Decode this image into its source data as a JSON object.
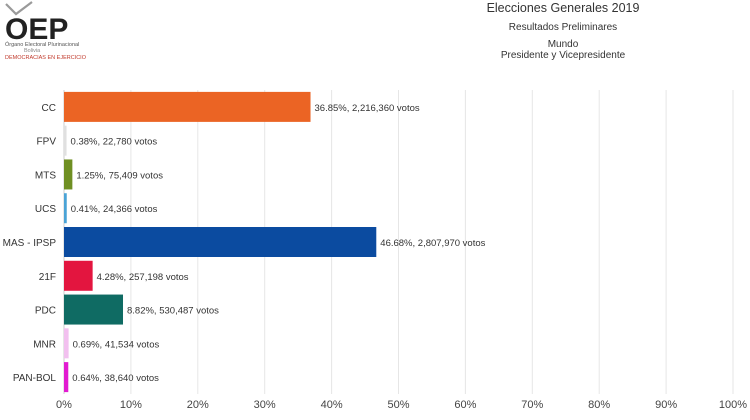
{
  "header": {
    "logo_text": "OEP",
    "logo_line1": "Órgano Electoral Plurinacional",
    "logo_line2": "Bolivia",
    "logo_line3": "DEMOCRACIAS EN EJERCICIO",
    "title": "Elecciones Generales 2019",
    "subtitle": "Resultados Preliminares",
    "scope": "Mundo",
    "office": "Presidente y Vicepresidente"
  },
  "chart_data": {
    "type": "bar",
    "orientation": "horizontal",
    "categories": [
      "CC",
      "FPV",
      "MTS",
      "UCS",
      "MAS - IPSP",
      "21F",
      "PDC",
      "MNR",
      "PAN-BOL"
    ],
    "values": [
      36.85,
      0.38,
      1.25,
      0.41,
      46.68,
      4.28,
      8.82,
      0.69,
      0.64
    ],
    "data_labels": [
      "36.85%,  2,216,360 votos",
      "0.38%,  22,780 votos",
      "1.25%,  75,409 votos",
      "0.41%,  24,366 votos",
      "46.68%,  2,807,970 votos",
      "4.28%,  257,198 votos",
      "8.82%,  530,487 votos",
      "0.69%,  41,534 votos",
      "0.64%,  38,640 votos"
    ],
    "colors": [
      "#eb6424",
      "#e0e0e0",
      "#6f8f23",
      "#4aa3d6",
      "#0b4ba0",
      "#e3153f",
      "#0f6b63",
      "#f2c0ef",
      "#e21bd1"
    ],
    "xlim": [
      0,
      100
    ],
    "x_ticks": [
      "0%",
      "10%",
      "20%",
      "30%",
      "40%",
      "50%",
      "60%",
      "70%",
      "80%",
      "90%",
      "100%"
    ],
    "grid": true
  }
}
